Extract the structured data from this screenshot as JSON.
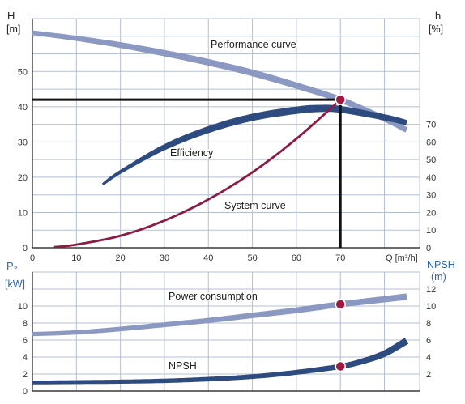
{
  "chart_data": [
    {
      "type": "line",
      "grid": true,
      "x_axis": {
        "label": "Q [m³/h]",
        "ticks": [
          0,
          10,
          20,
          30,
          40,
          50,
          60,
          70
        ],
        "lim": [
          0,
          88
        ]
      },
      "y_axis_left": {
        "label": "H",
        "unit": "[m]",
        "ticks": [
          0,
          10,
          20,
          30,
          40,
          50
        ],
        "lim": [
          0,
          65
        ]
      },
      "y_axis_right": {
        "label": "h",
        "unit": "[%]",
        "ticks": [
          0,
          10,
          20,
          30,
          40,
          50,
          60,
          70
        ],
        "lim": [
          0,
          130
        ]
      },
      "series": [
        {
          "name": "Performance curve",
          "axis": "H",
          "color": "#8b99c2",
          "x": [
            0,
            10,
            20,
            30,
            40,
            50,
            60,
            70,
            80,
            85
          ],
          "y": [
            61.0,
            59.4,
            57.5,
            55.2,
            52.6,
            49.6,
            46.0,
            42.0,
            36.6,
            33.4
          ],
          "operating_point": {
            "x": 70,
            "y": 42
          }
        },
        {
          "name": "Efficiency",
          "axis": "h",
          "color": "#2e4b7f",
          "x": [
            16,
            20,
            30,
            40,
            50,
            60,
            65,
            70,
            80,
            85
          ],
          "y": [
            36,
            43,
            57,
            67,
            74,
            78,
            79,
            78.5,
            74,
            71
          ]
        },
        {
          "name": "System curve",
          "axis": "H",
          "color": "#8c1c45",
          "x": [
            5,
            10,
            20,
            30,
            40,
            50,
            60,
            70
          ],
          "y": [
            0.2,
            0.9,
            3.4,
            7.7,
            13.7,
            21.4,
            30.9,
            42.0
          ]
        }
      ],
      "reference_lines": {
        "x": 70,
        "y": 42,
        "color": "#111111"
      },
      "point_color": "#9c1b3e",
      "axis_label_color": "#222222"
    },
    {
      "type": "line",
      "grid": true,
      "x_axis": {
        "lim": [
          0,
          88
        ]
      },
      "y_axis_left": {
        "label": "P₂",
        "unit": "[kW]",
        "ticks": [
          0,
          2,
          4,
          6,
          8,
          10
        ],
        "lim": [
          0,
          14
        ]
      },
      "y_axis_right": {
        "label": "NPSH",
        "unit": "(m)",
        "ticks": [
          2,
          4,
          6,
          8,
          10,
          12
        ],
        "lim": [
          0,
          14
        ]
      },
      "series": [
        {
          "name": "Power consumption",
          "axis": "P₂",
          "color": "#8b99c2",
          "x": [
            0,
            10,
            20,
            30,
            40,
            50,
            60,
            70,
            80,
            85
          ],
          "y": [
            6.7,
            6.9,
            7.3,
            7.8,
            8.3,
            8.9,
            9.5,
            10.2,
            10.8,
            11.1
          ],
          "operating_point": {
            "x": 70,
            "y": 10.2
          }
        },
        {
          "name": "NPSH",
          "axis": "NPSH",
          "color": "#2e4b7f",
          "x": [
            0,
            10,
            20,
            30,
            40,
            50,
            60,
            70,
            75,
            80,
            85
          ],
          "y": [
            1.0,
            1.05,
            1.1,
            1.2,
            1.4,
            1.7,
            2.2,
            2.9,
            3.5,
            4.4,
            5.9
          ],
          "operating_point": {
            "x": 70,
            "y": 2.9
          }
        }
      ],
      "point_color": "#9c1b3e",
      "axis_label_color": "#2f66ad"
    }
  ]
}
